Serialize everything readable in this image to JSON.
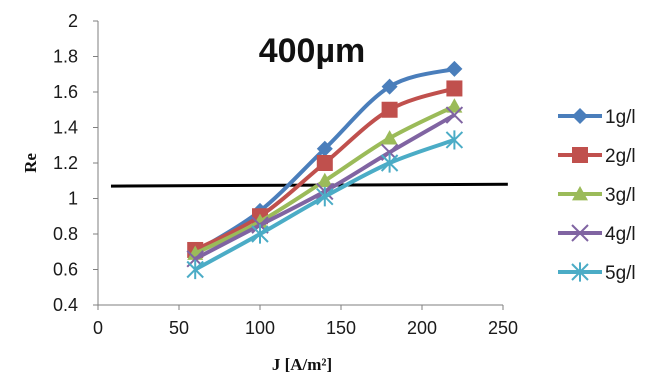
{
  "chart_data": {
    "type": "line",
    "title": "400µm",
    "xlabel": "J [A/m²]",
    "ylabel": "Re",
    "xlim": [
      0,
      250
    ],
    "ylim": [
      0.4,
      2
    ],
    "xticks": [
      0,
      50,
      100,
      150,
      200,
      250
    ],
    "yticks": [
      0.4,
      0.6,
      0.8,
      1,
      1.2,
      1.4,
      1.6,
      1.8,
      2
    ],
    "ytick_labels": [
      "0.4",
      "0.6",
      "0.8",
      "1",
      "1.2",
      "1.4",
      "1.6",
      "1.8",
      "2"
    ],
    "grid": false,
    "legend_position": "right",
    "x": [
      60,
      100,
      140,
      180,
      220
    ],
    "series": [
      {
        "name": "1g/l",
        "values": [
          0.7,
          0.93,
          1.28,
          1.63,
          1.73
        ],
        "color": "#4a7ebb",
        "marker": "diamond"
      },
      {
        "name": "2g/l",
        "values": [
          0.71,
          0.9,
          1.2,
          1.5,
          1.62
        ],
        "color": "#c0504d",
        "marker": "square"
      },
      {
        "name": "3g/l",
        "values": [
          0.69,
          0.87,
          1.1,
          1.34,
          1.52
        ],
        "color": "#9bbb59",
        "marker": "triangle"
      },
      {
        "name": "4g/l",
        "values": [
          0.66,
          0.85,
          1.04,
          1.26,
          1.47
        ],
        "color": "#8064a2",
        "marker": "x"
      },
      {
        "name": "5g/l",
        "values": [
          0.6,
          0.8,
          1.01,
          1.2,
          1.33
        ],
        "color": "#4bacc6",
        "marker": "asterisk"
      }
    ],
    "reference_line": {
      "x": [
        8,
        253
      ],
      "y": [
        1.07,
        1.08
      ],
      "color": "#000000"
    }
  }
}
